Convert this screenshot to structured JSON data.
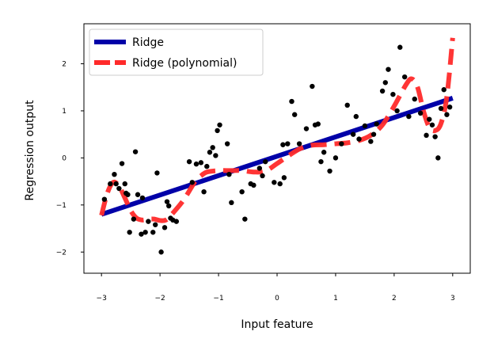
{
  "chart_data": {
    "type": "scatter",
    "xlabel": "Input feature",
    "ylabel": "Regression output",
    "xlim": [
      -3.3,
      3.3
    ],
    "ylim": [
      -2.45,
      2.85
    ],
    "xticks": [
      -3,
      -2,
      -1,
      0,
      1,
      2,
      3
    ],
    "yticks": [
      -2,
      -1,
      0,
      1,
      2
    ],
    "xtick_labels": [
      "−3",
      "−2",
      "−1",
      "0",
      "1",
      "2",
      "3"
    ],
    "ytick_labels": [
      "−2",
      "−1",
      "0",
      "1",
      "2"
    ],
    "legend_position": "top-left",
    "legend": [
      {
        "label": "Ridge",
        "color": "#0000a8",
        "style": "solid"
      },
      {
        "label": "Ridge (polynomial)",
        "color": "#ff2a2a",
        "style": "dashed"
      }
    ],
    "series": [
      {
        "name": "Ridge",
        "type": "line",
        "color": "#0000a8",
        "x": [
          -3.0,
          3.0
        ],
        "y": [
          -1.2,
          1.27
        ]
      },
      {
        "name": "Ridge (polynomial)",
        "type": "line",
        "color": "#ff2a2a",
        "x": [
          -3.0,
          -2.9,
          -2.8,
          -2.7,
          -2.6,
          -2.5,
          -2.4,
          -2.3,
          -2.2,
          -2.1,
          -2.0,
          -1.9,
          -1.8,
          -1.6,
          -1.4,
          -1.3,
          -1.2,
          -1.0,
          -0.8,
          -0.6,
          -0.4,
          -0.2,
          0.0,
          0.2,
          0.4,
          0.6,
          0.8,
          1.0,
          1.2,
          1.4,
          1.6,
          1.8,
          2.0,
          2.2,
          2.3,
          2.4,
          2.5,
          2.6,
          2.7,
          2.8,
          2.9,
          3.0
        ],
        "y": [
          -1.22,
          -0.75,
          -0.52,
          -0.6,
          -0.85,
          -1.12,
          -1.28,
          -1.32,
          -1.3,
          -1.3,
          -1.33,
          -1.32,
          -1.2,
          -0.9,
          -0.5,
          -0.38,
          -0.3,
          -0.27,
          -0.27,
          -0.27,
          -0.3,
          -0.28,
          -0.12,
          0.05,
          0.2,
          0.27,
          0.28,
          0.3,
          0.32,
          0.37,
          0.48,
          0.7,
          1.1,
          1.55,
          1.68,
          1.5,
          1.0,
          0.65,
          0.58,
          0.73,
          1.3,
          2.55
        ]
      },
      {
        "name": "",
        "type": "scatter",
        "color": "#000000",
        "x": [
          -2.95,
          -2.85,
          -2.78,
          -2.75,
          -2.7,
          -2.65,
          -2.6,
          -2.58,
          -2.55,
          -2.52,
          -2.45,
          -2.42,
          -2.38,
          -2.32,
          -2.3,
          -2.25,
          -2.2,
          -2.12,
          -2.08,
          -2.05,
          -1.98,
          -1.92,
          -1.88,
          -1.85,
          -1.82,
          -1.78,
          -1.72,
          -1.5,
          -1.45,
          -1.38,
          -1.3,
          -1.25,
          -1.2,
          -1.15,
          -1.1,
          -1.05,
          -1.02,
          -0.98,
          -0.85,
          -0.82,
          -0.78,
          -0.6,
          -0.55,
          -0.45,
          -0.4,
          -0.3,
          -0.25,
          -0.2,
          -0.05,
          0.05,
          0.1,
          0.12,
          0.18,
          0.25,
          0.3,
          0.38,
          0.5,
          0.6,
          0.65,
          0.7,
          0.75,
          0.8,
          0.9,
          1.0,
          1.1,
          1.2,
          1.3,
          1.35,
          1.4,
          1.5,
          1.6,
          1.65,
          1.7,
          1.8,
          1.85,
          1.9,
          1.98,
          2.05,
          2.1,
          2.18,
          2.25,
          2.35,
          2.45,
          2.55,
          2.6,
          2.65,
          2.7,
          2.75,
          2.8,
          2.85,
          2.9,
          2.95
        ],
        "y": [
          -0.88,
          -0.55,
          -0.35,
          -0.55,
          -0.65,
          -0.12,
          -0.55,
          -0.75,
          -0.78,
          -1.58,
          -1.3,
          0.13,
          -0.78,
          -1.62,
          -0.85,
          -1.58,
          -1.35,
          -1.58,
          -1.42,
          -0.32,
          -2.0,
          -1.48,
          -0.93,
          -1.02,
          -1.28,
          -1.32,
          -1.35,
          -0.08,
          -0.52,
          -0.13,
          -0.1,
          -0.72,
          -0.18,
          0.12,
          0.22,
          0.05,
          0.58,
          0.7,
          0.3,
          -0.35,
          -0.95,
          -0.72,
          -1.3,
          -0.55,
          -0.58,
          -0.22,
          -0.38,
          -0.08,
          -0.52,
          -0.55,
          0.28,
          -0.42,
          0.3,
          1.2,
          0.92,
          0.3,
          0.62,
          1.52,
          0.7,
          0.72,
          -0.08,
          0.12,
          -0.28,
          0.0,
          0.3,
          1.12,
          0.5,
          0.88,
          0.4,
          0.68,
          0.35,
          0.5,
          0.72,
          1.42,
          1.6,
          1.88,
          1.35,
          1.0,
          2.35,
          1.72,
          0.88,
          1.25,
          0.95,
          0.48,
          0.82,
          0.7,
          0.45,
          0.0,
          1.05,
          1.45,
          0.92,
          1.08
        ]
      }
    ]
  }
}
